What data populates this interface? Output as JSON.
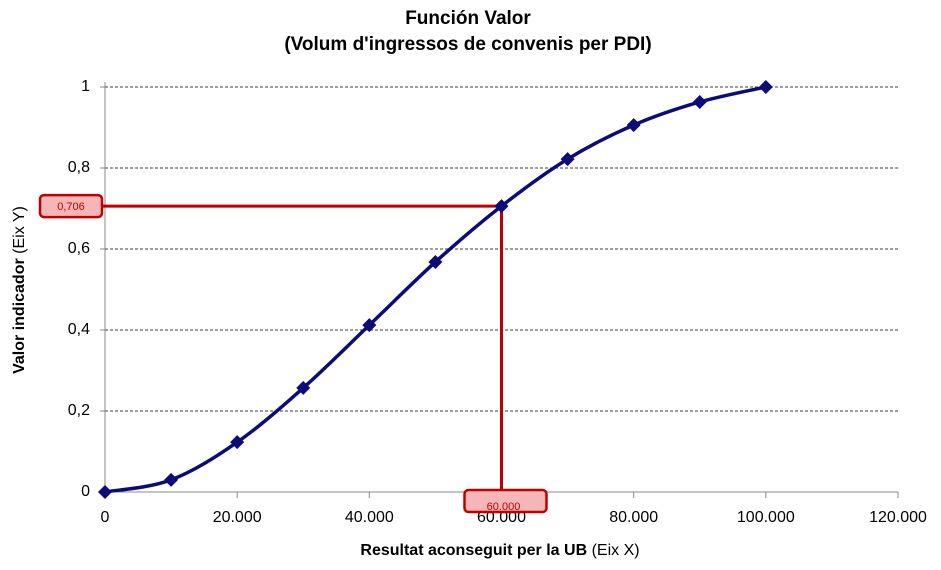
{
  "chart_data": {
    "type": "line",
    "title": "Función Valor",
    "subtitle": "(Volum d'ingressos de convenis per PDI)",
    "xlabel": {
      "main": "Resultat aconseguit per la UB",
      "note": "(Eix X)"
    },
    "ylabel": {
      "main": "Valor indicador",
      "note": "(Eix Y)"
    },
    "x": [
      0,
      10000,
      20000,
      30000,
      40000,
      50000,
      60000,
      70000,
      80000,
      90000,
      100000
    ],
    "series": [
      {
        "color": "#0c0c78",
        "values": [
          0,
          0.03,
          0.123,
          0.257,
          0.412,
          0.568,
          0.706,
          0.822,
          0.906,
          0.963,
          1
        ]
      }
    ],
    "xlim": [
      0,
      120000
    ],
    "xticks": [
      0,
      {
        "value": 20000,
        "label": "20.000"
      },
      {
        "value": 40000,
        "label": "40.000"
      },
      {
        "value": 60000,
        "label": "60.000"
      },
      {
        "value": 80000,
        "label": "80.000"
      },
      {
        "value": 100000,
        "label": "100.000"
      },
      {
        "value": 120000,
        "label": "120.000"
      }
    ],
    "ylim": [
      0,
      1
    ],
    "yticks": [
      0,
      {
        "value": 0.2,
        "label": "0,2"
      },
      {
        "value": 0.4,
        "label": "0,4"
      },
      {
        "value": 0.6,
        "label": "0,6"
      },
      {
        "value": 0.8,
        "label": "0,8"
      },
      1
    ],
    "grid": true,
    "annotation": {
      "x": 60000,
      "y": 0.706,
      "x_label": "60.000",
      "y_label": "0,706",
      "color": "#c00000"
    }
  }
}
